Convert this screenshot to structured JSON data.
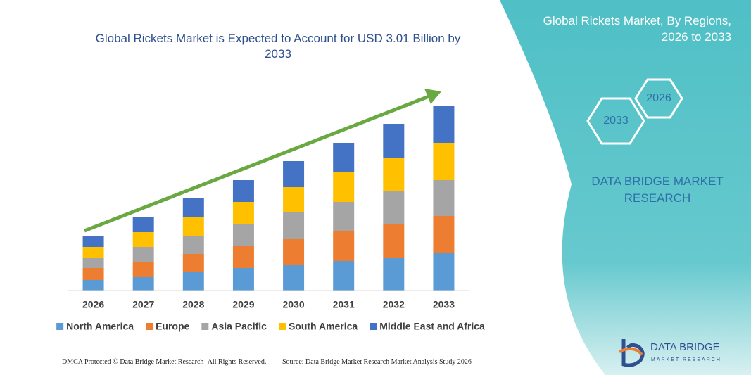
{
  "chart_data": {
    "type": "stacked-bar",
    "title": "Global Rickets Market is Expected to Account for USD 3.01 Billion by 2033",
    "categories": [
      "2026",
      "2027",
      "2028",
      "2029",
      "2030",
      "2031",
      "2032",
      "2033"
    ],
    "series": [
      {
        "name": "North America",
        "color": "#5b9bd5",
        "values": [
          15,
          20,
          26,
          32,
          37,
          42,
          47,
          53
        ]
      },
      {
        "name": "Europe",
        "color": "#ed7d31",
        "values": [
          17,
          21,
          26,
          31,
          37,
          42,
          48,
          53
        ]
      },
      {
        "name": "Asia Pacific",
        "color": "#a5a5a5",
        "values": [
          15,
          21,
          26,
          31,
          37,
          42,
          47,
          51
        ]
      },
      {
        "name": "South America",
        "color": "#ffc000",
        "values": [
          15,
          21,
          27,
          32,
          36,
          42,
          47,
          53
        ]
      },
      {
        "name": "Middle East and Africa",
        "color": "#4472c4",
        "values": [
          16,
          22,
          26,
          31,
          37,
          42,
          48,
          53
        ]
      }
    ]
  },
  "panel": {
    "title": "Global Rickets Market, By Regions, 2026 to 2033",
    "hex_start": "2026",
    "hex_end": "2033",
    "brand": "DATA BRIDGE MARKET RESEARCH"
  },
  "logo": {
    "name": "DATA BRIDGE",
    "tagline": "MARKET RESEARCH"
  },
  "footer": {
    "left": "DMCA Protected © Data Bridge Market Research- All Rights Reserved.",
    "right": "Source: Data Bridge Market Research Market Analysis Study 2026"
  }
}
